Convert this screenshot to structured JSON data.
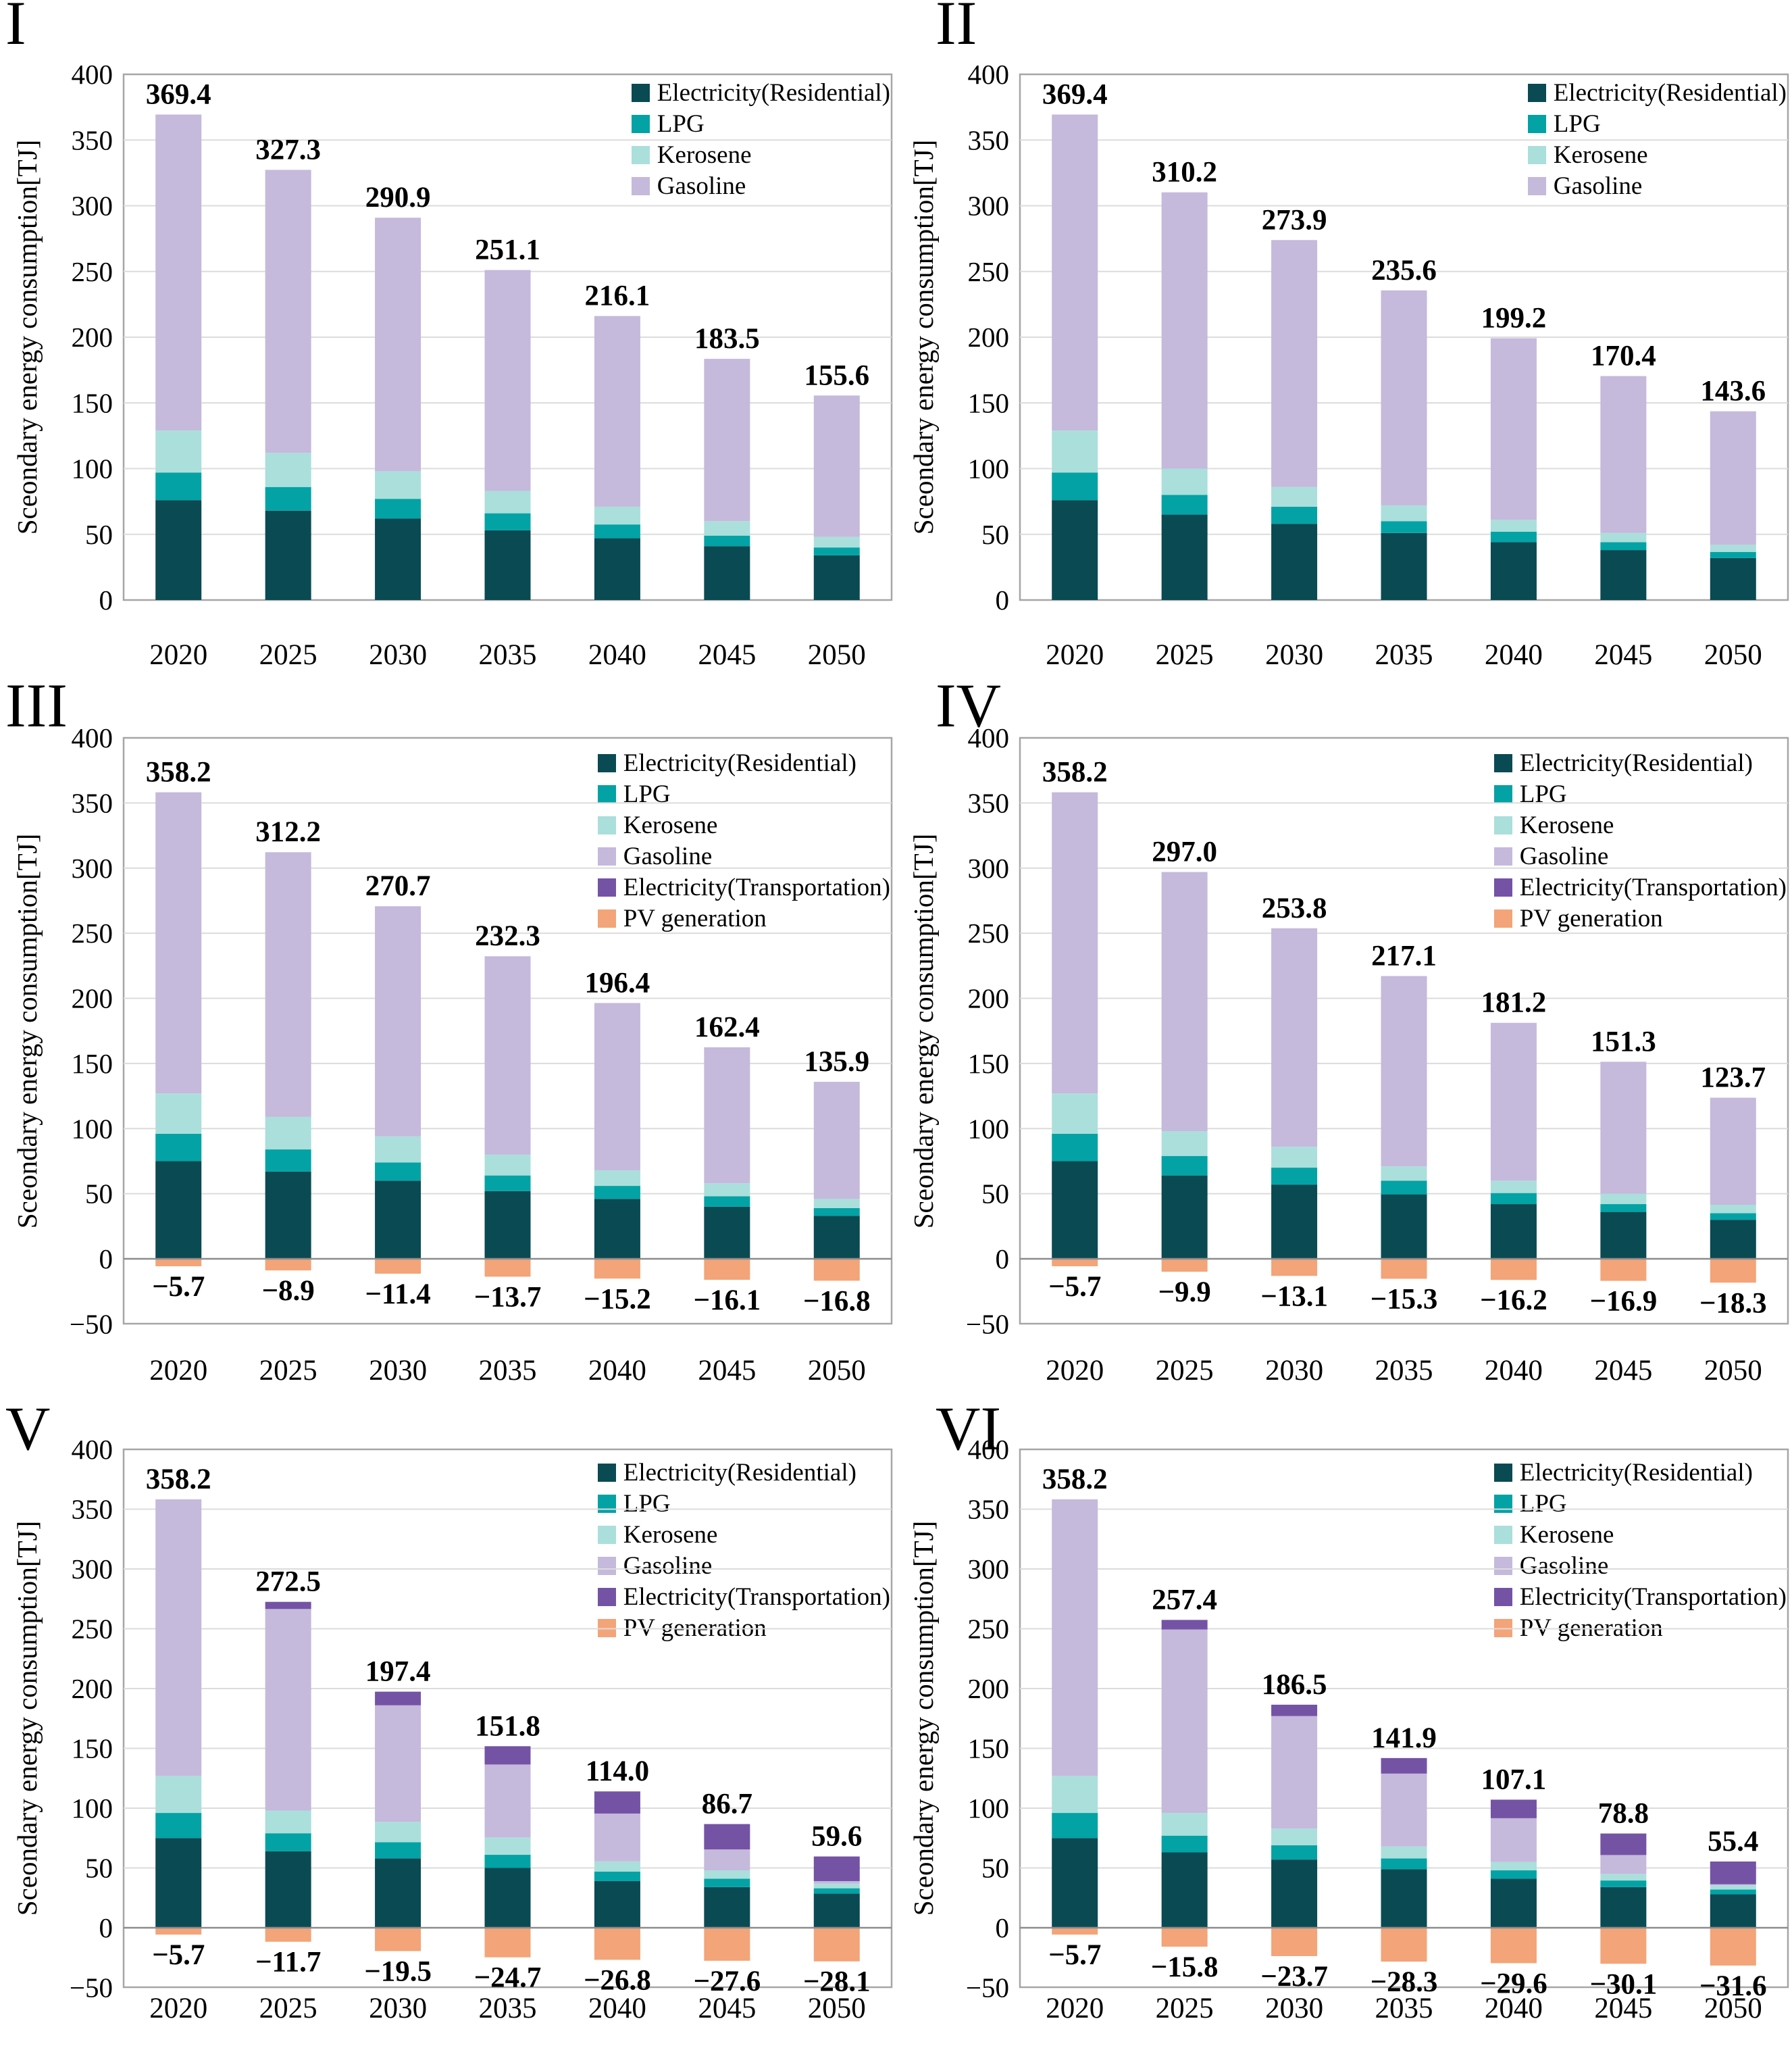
{
  "chart_data": {
    "type": "bar",
    "stacked": true,
    "grid": true,
    "x_categories": [
      "2020",
      "2025",
      "2030",
      "2035",
      "2040",
      "2045",
      "2050"
    ],
    "y_axis_label": "Sceondary energy consumption[TJ]",
    "colors": {
      "electricity_residential": "#0a4a53",
      "lpg": "#03a2a5",
      "kerosene": "#abdfdb",
      "gasoline": "#c5b9dc",
      "electricity_transportation": "#7453a5",
      "pv_generation": "#f3a478",
      "grid": "#dcdcdc",
      "axis": "#a6a6a6",
      "zero": "#8c8c8c",
      "text": "#000000"
    },
    "panels": [
      {
        "numeral": "I",
        "ylim": [
          0,
          400
        ],
        "yticks": [
          400,
          350,
          300,
          250,
          200,
          150,
          100,
          50,
          0
        ],
        "legend": [
          {
            "label": "Electricity(Residential)",
            "key": "electricity_residential"
          },
          {
            "label": "LPG",
            "key": "lpg"
          },
          {
            "label": "Kerosene",
            "key": "kerosene"
          },
          {
            "label": "Gasoline",
            "key": "gasoline"
          }
        ],
        "series": [
          {
            "name": "Electricity(Residential)",
            "key": "electricity_residential",
            "values": [
              76,
              68,
              62,
              53,
              47,
              41,
              34
            ]
          },
          {
            "name": "LPG",
            "key": "lpg",
            "values": [
              21,
              18,
              15,
              13,
              10.5,
              8,
              6
            ]
          },
          {
            "name": "Kerosene",
            "key": "kerosene",
            "values": [
              32,
              26,
              21,
              17,
              13.5,
              11,
              8
            ]
          },
          {
            "name": "Gasoline",
            "key": "gasoline",
            "values": [
              240.4,
              215.3,
              192.9,
              168.1,
              145.1,
              123.5,
              107.6
            ]
          }
        ],
        "totals": [
          "369.4",
          "327.3",
          "290.9",
          "251.1",
          "216.1",
          "183.5",
          "155.6"
        ],
        "pv": null
      },
      {
        "numeral": "II",
        "ylim": [
          0,
          400
        ],
        "yticks": [
          400,
          350,
          300,
          250,
          200,
          150,
          100,
          50,
          0
        ],
        "legend": [
          {
            "label": "Electricity(Residential)",
            "key": "electricity_residential"
          },
          {
            "label": "LPG",
            "key": "lpg"
          },
          {
            "label": "Kerosene",
            "key": "kerosene"
          },
          {
            "label": "Gasoline",
            "key": "gasoline"
          }
        ],
        "series": [
          {
            "name": "Electricity(Residential)",
            "key": "electricity_residential",
            "values": [
              76,
              65,
              58,
              51,
              44,
              38,
              32
            ]
          },
          {
            "name": "LPG",
            "key": "lpg",
            "values": [
              21,
              15,
              13,
              9,
              8,
              6,
              4.5
            ]
          },
          {
            "name": "Kerosene",
            "key": "kerosene",
            "values": [
              32,
              20,
              15,
              12,
              9,
              7,
              5.5
            ]
          },
          {
            "name": "Gasoline",
            "key": "gasoline",
            "values": [
              240.4,
              210.2,
              187.9,
              163.6,
              138.2,
              119.4,
              101.6
            ]
          }
        ],
        "totals": [
          "369.4",
          "310.2",
          "273.9",
          "235.6",
          "199.2",
          "170.4",
          "143.6"
        ],
        "pv": null
      },
      {
        "numeral": "III",
        "ylim": [
          -50,
          400
        ],
        "yticks": [
          400,
          350,
          300,
          250,
          200,
          150,
          100,
          50,
          0,
          -50
        ],
        "legend": [
          {
            "label": "Electricity(Residential)",
            "key": "electricity_residential"
          },
          {
            "label": "LPG",
            "key": "lpg"
          },
          {
            "label": "Kerosene",
            "key": "kerosene"
          },
          {
            "label": "Gasoline",
            "key": "gasoline"
          },
          {
            "label": "Electricity(Transportation)",
            "key": "electricity_transportation"
          },
          {
            "label": "PV generation",
            "key": "pv_generation"
          }
        ],
        "series": [
          {
            "name": "Electricity(Residential)",
            "key": "electricity_residential",
            "values": [
              75,
              67,
              60,
              52,
              46,
              40,
              33
            ]
          },
          {
            "name": "LPG",
            "key": "lpg",
            "values": [
              21,
              17,
              14,
              12,
              10,
              8,
              6
            ]
          },
          {
            "name": "Kerosene",
            "key": "kerosene",
            "values": [
              31,
              25,
              20,
              16,
              12,
              10,
              7
            ]
          },
          {
            "name": "Gasoline",
            "key": "gasoline",
            "values": [
              231.2,
              203.2,
              176.7,
              152.3,
              128.4,
              104.4,
              89.9
            ]
          },
          {
            "name": "Electricity(Transportation)",
            "key": "electricity_transportation",
            "values": [
              0,
              0,
              0,
              0,
              0,
              0,
              0
            ]
          }
        ],
        "totals": [
          "358.2",
          "312.2",
          "270.7",
          "232.3",
          "196.4",
          "162.4",
          "135.9"
        ],
        "pv": {
          "name": "PV generation",
          "key": "pv_generation",
          "values": [
            -5.7,
            -8.9,
            -11.4,
            -13.7,
            -15.2,
            -16.1,
            -16.8
          ],
          "labels": [
            "−5.7",
            "−8.9",
            "−11.4",
            "−13.7",
            "−15.2",
            "−16.1",
            "−16.8"
          ]
        }
      },
      {
        "numeral": "IV",
        "ylim": [
          -50,
          400
        ],
        "yticks": [
          400,
          350,
          300,
          250,
          200,
          150,
          100,
          50,
          0,
          -50
        ],
        "legend": [
          {
            "label": "Electricity(Residential)",
            "key": "electricity_residential"
          },
          {
            "label": "LPG",
            "key": "lpg"
          },
          {
            "label": "Kerosene",
            "key": "kerosene"
          },
          {
            "label": "Gasoline",
            "key": "gasoline"
          },
          {
            "label": "Electricity(Transportation)",
            "key": "electricity_transportation"
          },
          {
            "label": "PV generation",
            "key": "pv_generation"
          }
        ],
        "series": [
          {
            "name": "Electricity(Residential)",
            "key": "electricity_residential",
            "values": [
              75,
              64,
              57,
              49.5,
              42,
              36,
              30
            ]
          },
          {
            "name": "LPG",
            "key": "lpg",
            "values": [
              21,
              15,
              13,
              10.5,
              8.5,
              6,
              5
            ]
          },
          {
            "name": "Kerosene",
            "key": "kerosene",
            "values": [
              31,
              19,
              16,
              11,
              9.5,
              8,
              6.5
            ]
          },
          {
            "name": "Gasoline",
            "key": "gasoline",
            "values": [
              231.2,
              199.0,
              167.8,
              146.1,
              121.2,
              101.3,
              82.2
            ]
          },
          {
            "name": "Electricity(Transportation)",
            "key": "electricity_transportation",
            "values": [
              0,
              0,
              0,
              0,
              0,
              0,
              0
            ]
          }
        ],
        "totals": [
          "358.2",
          "297.0",
          "253.8",
          "217.1",
          "181.2",
          "151.3",
          "123.7"
        ],
        "pv": {
          "name": "PV generation",
          "key": "pv_generation",
          "values": [
            -5.7,
            -9.9,
            -13.1,
            -15.3,
            -16.2,
            -16.9,
            -18.3
          ],
          "labels": [
            "−5.7",
            "−9.9",
            "−13.1",
            "−15.3",
            "−16.2",
            "−16.9",
            "−18.3"
          ]
        }
      },
      {
        "numeral": "V",
        "ylim": [
          -50,
          400
        ],
        "yticks": [
          400,
          350,
          300,
          250,
          200,
          150,
          100,
          50,
          0,
          -50
        ],
        "legend": [
          {
            "label": "Electricity(Residential)",
            "key": "electricity_residential"
          },
          {
            "label": "LPG",
            "key": "lpg"
          },
          {
            "label": "Kerosene",
            "key": "kerosene"
          },
          {
            "label": "Gasoline",
            "key": "gasoline"
          },
          {
            "label": "Electricity(Transportation)",
            "key": "electricity_transportation"
          },
          {
            "label": "PV generation",
            "key": "pv_generation"
          }
        ],
        "series": [
          {
            "name": "Electricity(Residential)",
            "key": "electricity_residential",
            "values": [
              75,
              64,
              58,
              50,
              39,
              34,
              28.5
            ]
          },
          {
            "name": "LPG",
            "key": "lpg",
            "values": [
              21,
              15,
              13.5,
              11,
              8,
              7,
              4.5
            ]
          },
          {
            "name": "Kerosene",
            "key": "kerosene",
            "values": [
              31,
              19,
              17,
              14.5,
              8.5,
              7,
              4
            ]
          },
          {
            "name": "Gasoline",
            "key": "gasoline",
            "values": [
              231.2,
              168.5,
              97.5,
              61,
              40,
              17.5,
              2
            ]
          },
          {
            "name": "Electricity(Transportation)",
            "key": "electricity_transportation",
            "values": [
              0,
              6,
              11.4,
              15.3,
              18.5,
              21.2,
              20.6
            ]
          }
        ],
        "totals": [
          "358.2",
          "272.5",
          "197.4",
          "151.8",
          "114.0",
          "86.7",
          "59.6"
        ],
        "pv": {
          "name": "PV generation",
          "key": "pv_generation",
          "values": [
            -5.7,
            -11.7,
            -19.5,
            -24.7,
            -26.8,
            -27.6,
            -28.1
          ],
          "labels": [
            "−5.7",
            "−11.7",
            "−19.5",
            "−24.7",
            "−26.8",
            "−27.6",
            "−28.1"
          ]
        }
      },
      {
        "numeral": "VI",
        "ylim": [
          -50,
          400
        ],
        "yticks": [
          400,
          350,
          300,
          250,
          200,
          150,
          100,
          50,
          0,
          -50
        ],
        "legend": [
          {
            "label": "Electricity(Residential)",
            "key": "electricity_residential"
          },
          {
            "label": "LPG",
            "key": "lpg"
          },
          {
            "label": "Kerosene",
            "key": "kerosene"
          },
          {
            "label": "Gasoline",
            "key": "gasoline"
          },
          {
            "label": "Electricity(Transportation)",
            "key": "electricity_transportation"
          },
          {
            "label": "PV generation",
            "key": "pv_generation"
          }
        ],
        "series": [
          {
            "name": "Electricity(Residential)",
            "key": "electricity_residential",
            "values": [
              75,
              63,
              57,
              49,
              41,
              34,
              28
            ]
          },
          {
            "name": "LPG",
            "key": "lpg",
            "values": [
              21,
              14,
              12,
              9,
              7,
              5.5,
              4
            ]
          },
          {
            "name": "Kerosene",
            "key": "kerosene",
            "values": [
              31,
              19,
              14,
              10,
              7,
              5.5,
              3.5
            ]
          },
          {
            "name": "Gasoline",
            "key": "gasoline",
            "values": [
              231.2,
              153.4,
              94.0,
              60.9,
              36.6,
              15.8,
              0.9
            ]
          },
          {
            "name": "Electricity(Transportation)",
            "key": "electricity_transportation",
            "values": [
              0,
              8,
              9.5,
              13,
              15.5,
              18,
              19
            ]
          }
        ],
        "totals": [
          "358.2",
          "257.4",
          "186.5",
          "141.9",
          "107.1",
          "78.8",
          "55.4"
        ],
        "pv": {
          "name": "PV generation",
          "key": "pv_generation",
          "values": [
            -5.7,
            -15.8,
            -23.7,
            -28.3,
            -29.6,
            -30.1,
            -31.6
          ],
          "labels": [
            "−5.7",
            "−15.8",
            "−23.7",
            "−28.3",
            "−29.6",
            "−30.1",
            "−31.6"
          ]
        }
      }
    ]
  }
}
